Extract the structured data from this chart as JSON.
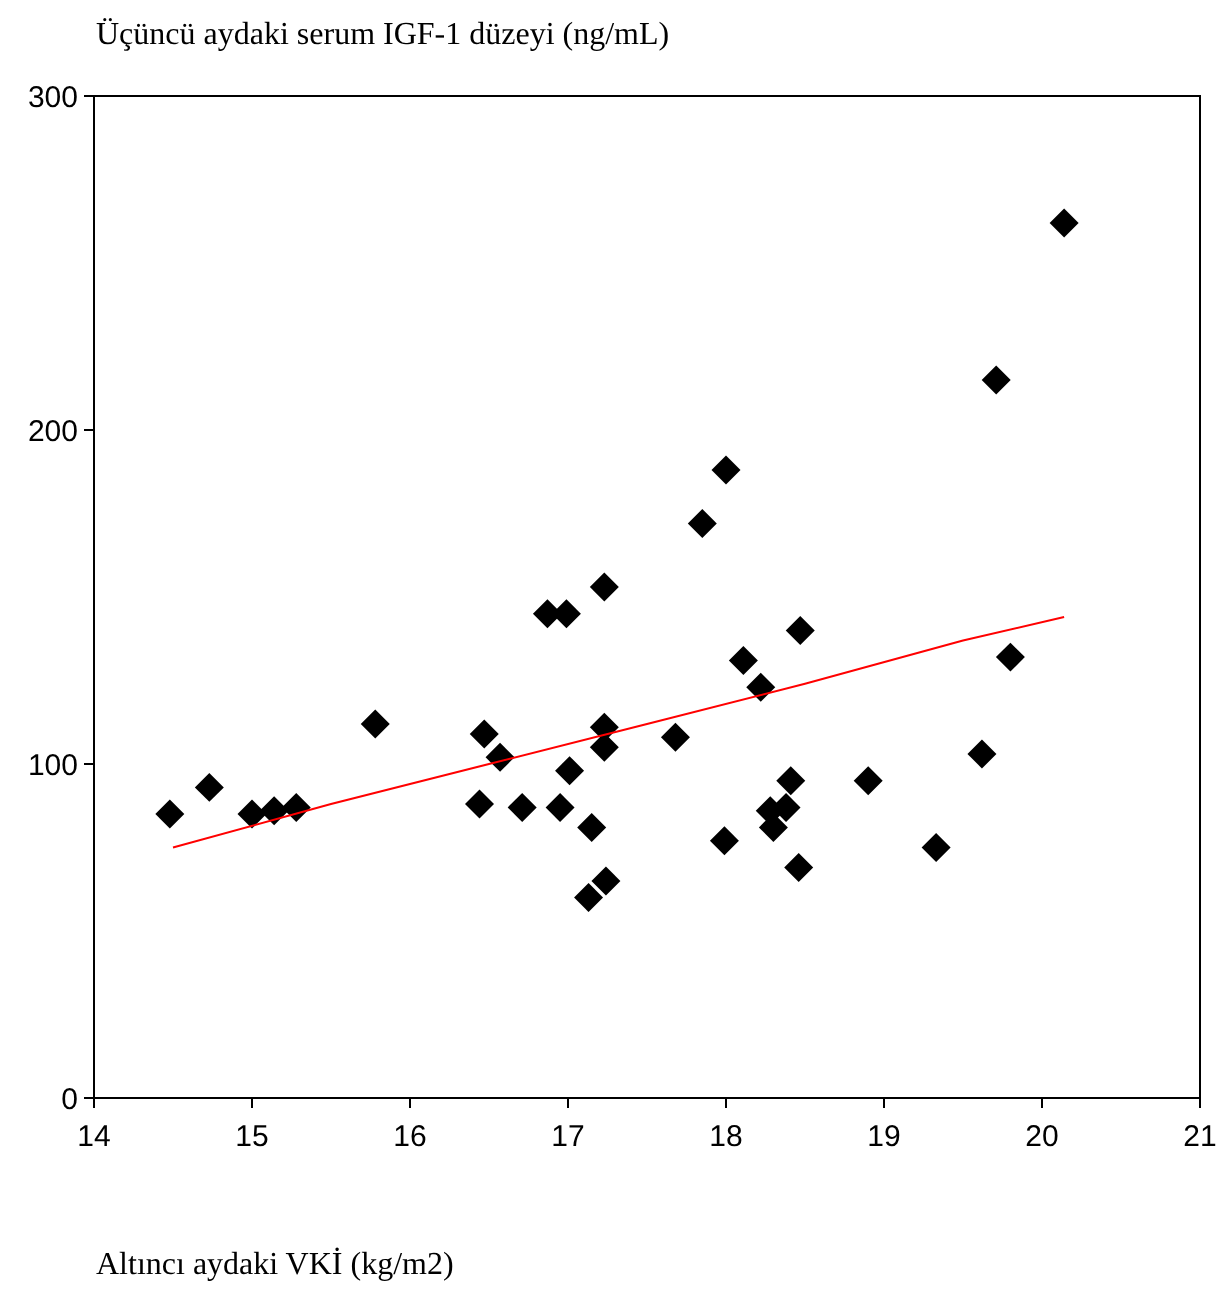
{
  "chart_data": {
    "type": "scatter",
    "title": "Üçüncü aydaki serum IGF-1 düzeyi (ng/mL)",
    "xlabel": "Altıncı aydaki VKİ (kg/m2)",
    "xlim": [
      14,
      21
    ],
    "xticks": [
      14,
      15,
      16,
      17,
      18,
      19,
      20,
      21
    ],
    "ylim": [
      0,
      300
    ],
    "yticks": [
      0,
      100,
      200,
      300
    ],
    "grid": false,
    "series": [
      {
        "color": "#000000",
        "marker": "diamond",
        "x": [
          14.48,
          14.73,
          15.0,
          15.14,
          15.28,
          15.78,
          16.44,
          16.47,
          16.57,
          16.71,
          16.87,
          16.99,
          16.95,
          17.01,
          17.15,
          17.13,
          17.23,
          17.23,
          17.23,
          17.24,
          17.68,
          17.85,
          18.0,
          17.99,
          18.11,
          18.22,
          18.28,
          18.3,
          18.38,
          18.41,
          18.47,
          18.46,
          18.9,
          19.33,
          19.62,
          19.71,
          19.8,
          20.14
        ],
        "values": [
          85,
          93,
          85,
          86,
          87,
          112,
          88,
          109,
          102,
          87,
          145,
          145,
          87,
          98,
          81,
          60,
          153,
          111,
          105,
          65,
          108,
          172,
          188,
          77,
          131,
          123,
          86,
          81,
          87,
          95,
          140,
          69,
          95,
          75,
          103,
          215,
          132,
          262
        ]
      },
      {
        "type": "line",
        "color": "#ff0000",
        "marker": "none",
        "x": [
          14.5,
          15.5,
          16.5,
          17.5,
          18.5,
          19.5,
          20.14
        ],
        "values": [
          75,
          88,
          100,
          112,
          124,
          137,
          144
        ]
      }
    ]
  }
}
